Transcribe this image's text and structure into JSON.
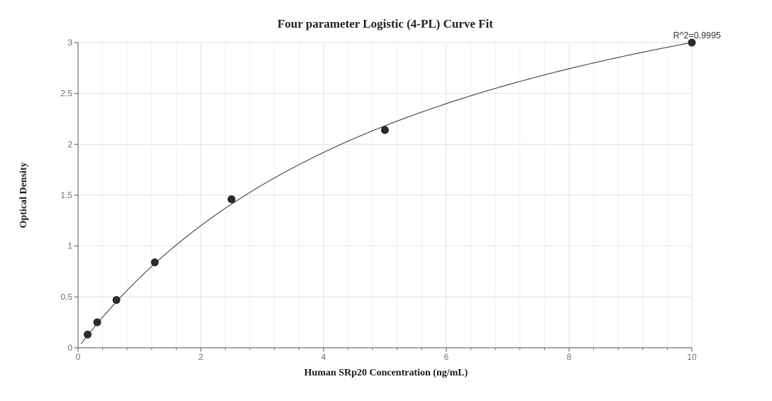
{
  "chart_data": {
    "type": "scatter",
    "title": "Four parameter Logistic (4-PL) Curve Fit",
    "xlabel": "Human SRp20 Concentration (ng/mL)",
    "ylabel": "Optical Density",
    "series": [
      {
        "name": "standard-curve-points",
        "x": [
          0.156,
          0.3125,
          0.625,
          1.25,
          2.5,
          5,
          10
        ],
        "y": [
          0.13,
          0.25,
          0.47,
          0.84,
          1.46,
          2.14,
          3.0
        ]
      }
    ],
    "xlim": [
      0,
      10
    ],
    "ylim": [
      0,
      3
    ],
    "x_major_ticks": [
      0,
      2,
      4,
      6,
      8,
      10
    ],
    "x_minor_tick_interval": 0.4,
    "y_major_ticks": [
      0,
      0.5,
      1,
      1.5,
      2,
      2.5,
      3
    ],
    "grid": {
      "vertical_minor_lines": true,
      "horizontal_major_lines": true,
      "legend": "none"
    },
    "annotations": {
      "r_squared_text": "R^2=0.9995"
    },
    "fit": {
      "model": "4PL",
      "curve_approx_params": {
        "a": 0,
        "d": 4.8,
        "c": 6.0,
        "b": 1
      },
      "curve_x_range": [
        0.05,
        10
      ]
    },
    "colors": {
      "axis": "#6e7079",
      "tick_label": "#6e7079",
      "grid_major": "#dde2ee",
      "grid_minor": "#edf0f7",
      "point": "#2b2b2b",
      "curve": "#404040",
      "title": "#222222",
      "axis_name": "#1a1a1a",
      "annotation": "#333333"
    }
  }
}
